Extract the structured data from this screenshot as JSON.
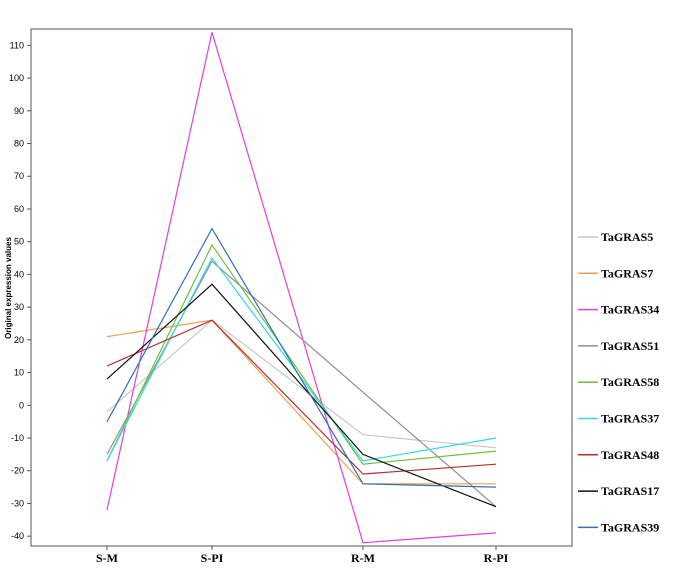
{
  "chart_data": {
    "type": "line",
    "title": "",
    "xlabel": "",
    "ylabel": "Original expression values",
    "categories": [
      "S-M",
      "S-PI",
      "R-M",
      "R-PI"
    ],
    "ylim": [
      -43,
      115
    ],
    "yticks": [
      -40,
      -30,
      -20,
      -10,
      0,
      10,
      20,
      30,
      40,
      50,
      60,
      70,
      80,
      90,
      100,
      110
    ],
    "grid": false,
    "legend_position": "right",
    "series": [
      {
        "name": "TaGRAS5",
        "color": "#c8c8c8",
        "values": [
          -2,
          26,
          -9,
          -13
        ]
      },
      {
        "name": "TaGRAS7",
        "color": "#f0a050",
        "values": [
          21,
          26,
          -24,
          -24
        ]
      },
      {
        "name": "TaGRAS34",
        "color": "#e040e0",
        "values": [
          -32,
          114,
          -42,
          -39
        ]
      },
      {
        "name": "TaGRAS51",
        "color": "#909090",
        "values": [
          -15,
          44,
          4,
          -31
        ]
      },
      {
        "name": "TaGRAS58",
        "color": "#70c040",
        "values": [
          -17,
          49,
          -18,
          -14
        ]
      },
      {
        "name": "TaGRAS37",
        "color": "#30d8e8",
        "values": [
          -17,
          45,
          -17,
          -10
        ]
      },
      {
        "name": "TaGRAS48",
        "color": "#b03030",
        "values": [
          12,
          26,
          -21,
          -18
        ]
      },
      {
        "name": "TaGRAS17",
        "color": "#101010",
        "values": [
          8,
          37,
          -15,
          -31
        ]
      },
      {
        "name": "TaGRAS39",
        "color": "#3070b0",
        "values": [
          -5,
          54,
          -24,
          -25
        ]
      }
    ]
  }
}
